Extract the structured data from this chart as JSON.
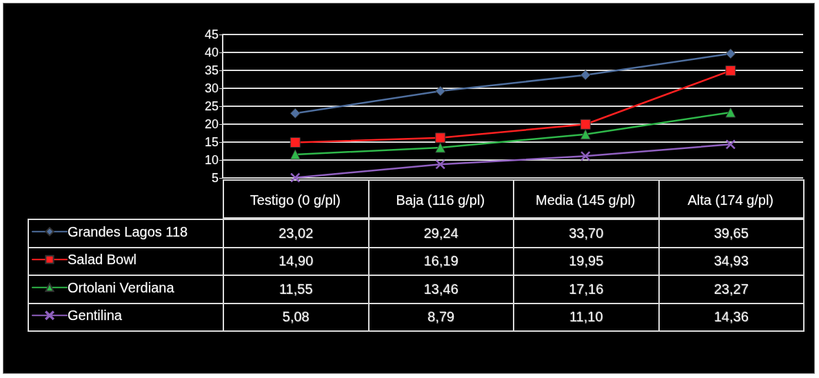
{
  "chart_data": {
    "type": "line",
    "categories": [
      "Testigo (0 g/pl)",
      "Baja (116 g/pl)",
      "Media (145 g/pl)",
      "Alta (174 g/pl)"
    ],
    "series": [
      {
        "name": "Grandes Lagos 118",
        "color": "#4f6f9f",
        "marker": "diamond",
        "values": [
          23.02,
          29.24,
          33.7,
          39.65
        ],
        "value_labels": [
          "23,02",
          "29,24",
          "33,70",
          "39,65"
        ]
      },
      {
        "name": "Salad Bowl",
        "color": "#ff2020",
        "marker": "square",
        "values": [
          14.9,
          16.19,
          19.95,
          34.93
        ],
        "value_labels": [
          "14,90",
          "16,19",
          "19,95",
          "34,93"
        ]
      },
      {
        "name": "Ortolani Verdiana",
        "color": "#2fb84a",
        "marker": "triangle",
        "values": [
          11.55,
          13.46,
          17.16,
          23.27
        ],
        "value_labels": [
          "11,55",
          "13,46",
          "17,16",
          "23,27"
        ]
      },
      {
        "name": "Gentilina",
        "color": "#9060c0",
        "marker": "cross",
        "values": [
          5.08,
          8.79,
          11.1,
          14.36
        ],
        "value_labels": [
          "5,08",
          "8,79",
          "11,10",
          "14,36"
        ]
      }
    ],
    "ylim": [
      5,
      45
    ],
    "yticks": [
      5,
      10,
      15,
      20,
      25,
      30,
      35,
      40,
      45
    ],
    "grid": "y",
    "legend": "bottom left"
  }
}
